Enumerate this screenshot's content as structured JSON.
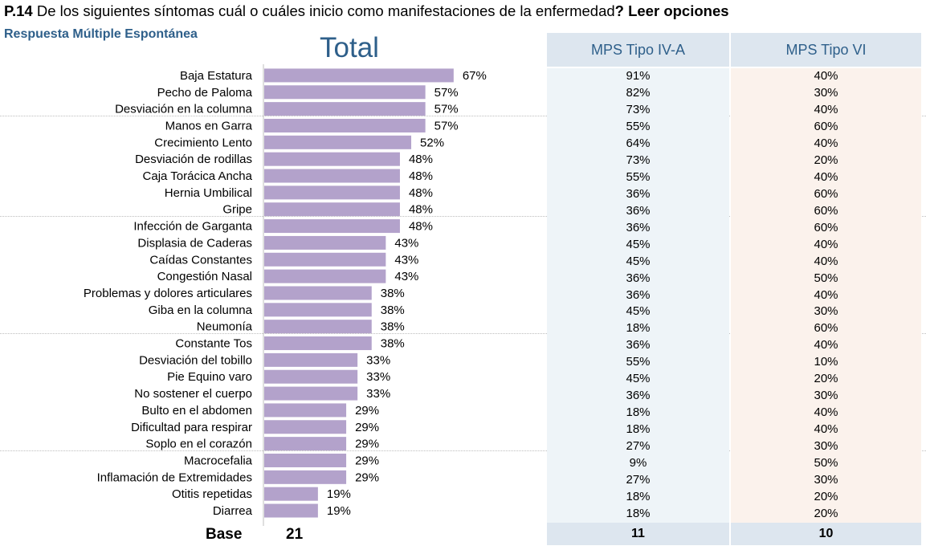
{
  "question": {
    "number": "P.14",
    "text": " De los siguientes síntomas cuál o cuáles inicio como manifestaciones de la enfermedad",
    "instruction": "? Leer opciones"
  },
  "subtitle": "Respuesta Múltiple Espontánea",
  "colors": {
    "bar": "#b3a2cb",
    "accent": "#2e5f8a",
    "header_bg": "#dde6ef",
    "col_a_bg": "#eef4f8",
    "col_b_bg": "#fbf2ec"
  },
  "chart_data": {
    "type": "bar",
    "orientation": "horizontal",
    "title": "Total",
    "categories": [
      "Baja Estatura",
      "Pecho de Paloma",
      "Desviación en la columna",
      "Manos en Garra",
      "Crecimiento Lento",
      "Desviación de rodillas",
      "Caja Torácica Ancha",
      "Hernia Umbilical",
      "Gripe",
      "Infección de Garganta",
      "Displasia de Caderas",
      "Caídas Constantes",
      "Congestión Nasal",
      "Problemas y dolores articulares",
      "Giba en la columna",
      "Neumonía",
      "Constante Tos",
      "Desviación del tobillo",
      "Pie Equino varo",
      "No sostener el cuerpo",
      "Bulto en el abdomen",
      "Dificultad para respirar",
      "Soplo en el corazón",
      "Macrocefalia",
      "Inflamación de Extremidades",
      "Otitis repetidas",
      "Diarrea"
    ],
    "values": [
      67,
      57,
      57,
      57,
      52,
      48,
      48,
      48,
      48,
      48,
      43,
      43,
      43,
      38,
      38,
      38,
      38,
      33,
      33,
      33,
      29,
      29,
      29,
      29,
      29,
      19,
      19
    ],
    "value_suffix": "%",
    "xlim": [
      0,
      100
    ],
    "base_label": "Base",
    "base_value": "21"
  },
  "table": {
    "columns": [
      {
        "header": "MPS Tipo IV-A",
        "values": [
          "91%",
          "82%",
          "73%",
          "55%",
          "64%",
          "73%",
          "55%",
          "36%",
          "36%",
          "36%",
          "45%",
          "45%",
          "36%",
          "36%",
          "45%",
          "18%",
          "36%",
          "55%",
          "45%",
          "36%",
          "18%",
          "18%",
          "27%",
          "9%",
          "27%",
          "18%",
          "18%"
        ],
        "base": "11"
      },
      {
        "header": "MPS Tipo VI",
        "values": [
          "40%",
          "30%",
          "40%",
          "60%",
          "40%",
          "20%",
          "40%",
          "60%",
          "60%",
          "60%",
          "40%",
          "40%",
          "50%",
          "40%",
          "30%",
          "60%",
          "40%",
          "10%",
          "20%",
          "30%",
          "40%",
          "40%",
          "30%",
          "50%",
          "30%",
          "20%",
          "20%"
        ],
        "base": "10"
      }
    ]
  }
}
